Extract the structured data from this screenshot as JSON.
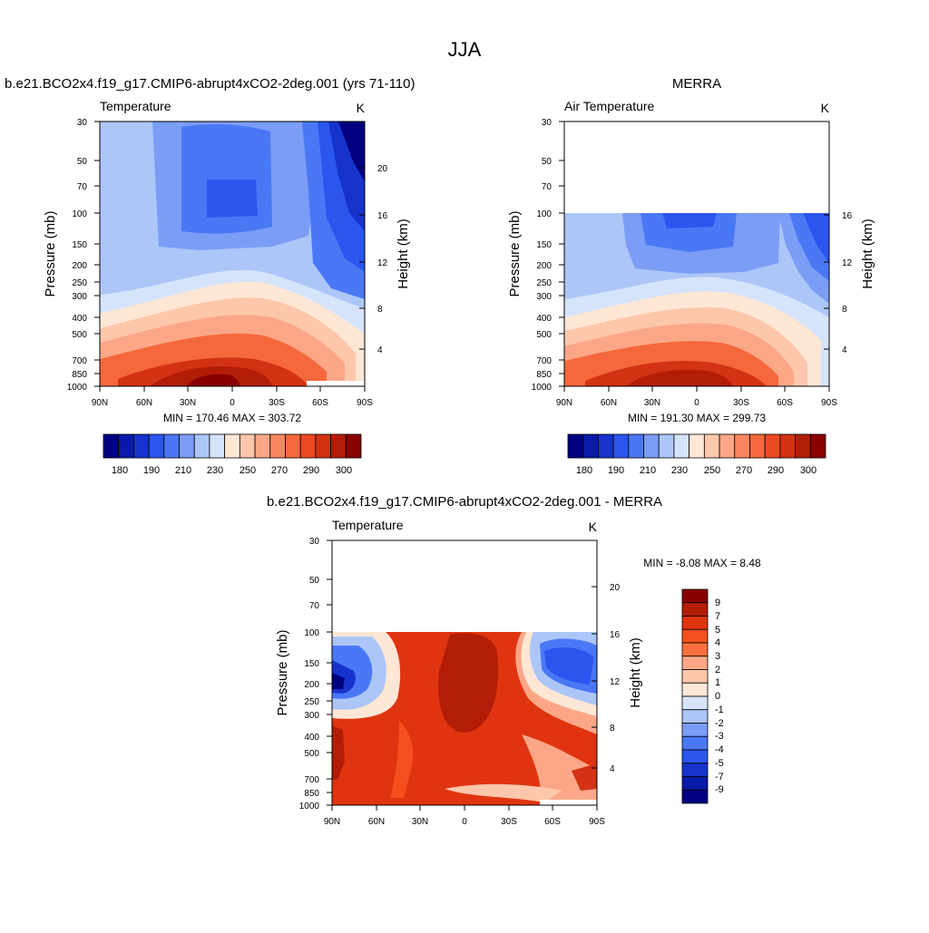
{
  "figure": {
    "title": "JJA"
  },
  "colors": {
    "temp_levels": [
      "#000080",
      "#0a1aa8",
      "#1733cc",
      "#2b55ef",
      "#4a78f5",
      "#7b9df6",
      "#adc6f8",
      "#d6e4fb",
      "#ffe7d6",
      "#fdc7ab",
      "#fba787",
      "#f88560",
      "#f4683c",
      "#eb4a23",
      "#d33214",
      "#b31d07",
      "#8a0000"
    ],
    "diff_levels": [
      "#8a0000",
      "#b31d07",
      "#e03410",
      "#f4501e",
      "#f87040",
      "#fba787",
      "#fdc7ab",
      "#ffe7d6",
      "#d6e4fb",
      "#adc6f8",
      "#7b9df6",
      "#4a78f5",
      "#2b55ef",
      "#1733cc",
      "#0a1aa8",
      "#000080"
    ]
  },
  "chart_data": [
    {
      "id": "model",
      "type": "contour",
      "title": "b.e21.BCO2x4.f19_g17.CMIP6-abrupt4xCO2-2deg.001 (yrs 71-110)",
      "left_label": "Temperature",
      "units": "K",
      "ylabel": "Pressure (mb)",
      "y2label": "Height (km)",
      "xticks": [
        "90N",
        "60N",
        "30N",
        "0",
        "30S",
        "60S",
        "90S"
      ],
      "yticks": [
        "30",
        "50",
        "70",
        "100",
        "150",
        "200",
        "250",
        "300",
        "400",
        "500",
        "700",
        "850",
        "1000"
      ],
      "y2ticks": [
        "20",
        "16",
        "12",
        "8",
        "4"
      ],
      "stats": "MIN = 170.46  MAX = 303.72",
      "min": 170.46,
      "max": 303.72,
      "colorbar_labels": [
        "180",
        "190",
        "210",
        "230",
        "250",
        "270",
        "290",
        "300"
      ],
      "top_pressure": 30
    },
    {
      "id": "obs",
      "type": "contour",
      "title": "MERRA",
      "left_label": "Air Temperature",
      "units": "K",
      "ylabel": "Pressure (mb)",
      "y2label": "Height (km)",
      "xticks": [
        "90N",
        "60N",
        "30N",
        "0",
        "30S",
        "60S",
        "90S"
      ],
      "yticks": [
        "30",
        "50",
        "70",
        "100",
        "150",
        "200",
        "250",
        "300",
        "400",
        "500",
        "700",
        "850",
        "1000"
      ],
      "y2ticks": [
        "16",
        "12",
        "8",
        "4"
      ],
      "stats": "MIN = 191.30  MAX = 299.73",
      "min": 191.3,
      "max": 299.73,
      "colorbar_labels": [
        "180",
        "190",
        "210",
        "230",
        "250",
        "270",
        "290",
        "300"
      ],
      "top_pressure": 100
    },
    {
      "id": "diff",
      "type": "contour",
      "title": "b.e21.BCO2x4.f19_g17.CMIP6-abrupt4xCO2-2deg.001 - MERRA",
      "left_label": "Temperature",
      "units": "K",
      "ylabel": "Pressure (mb)",
      "y2label": "Height (km)",
      "xticks": [
        "90N",
        "60N",
        "30N",
        "0",
        "30S",
        "60S",
        "90S"
      ],
      "yticks": [
        "30",
        "50",
        "70",
        "100",
        "150",
        "200",
        "250",
        "300",
        "400",
        "500",
        "700",
        "850",
        "1000"
      ],
      "y2ticks": [
        "20",
        "16",
        "12",
        "8",
        "4"
      ],
      "stats": "MIN =  -8.08  MAX =   8.48",
      "min": -8.08,
      "max": 8.48,
      "colorbar_labels": [
        "9",
        "7",
        "5",
        "4",
        "3",
        "2",
        "1",
        "0",
        "-1",
        "-2",
        "-3",
        "-4",
        "-5",
        "-7",
        "-9"
      ],
      "top_pressure": 100
    }
  ]
}
